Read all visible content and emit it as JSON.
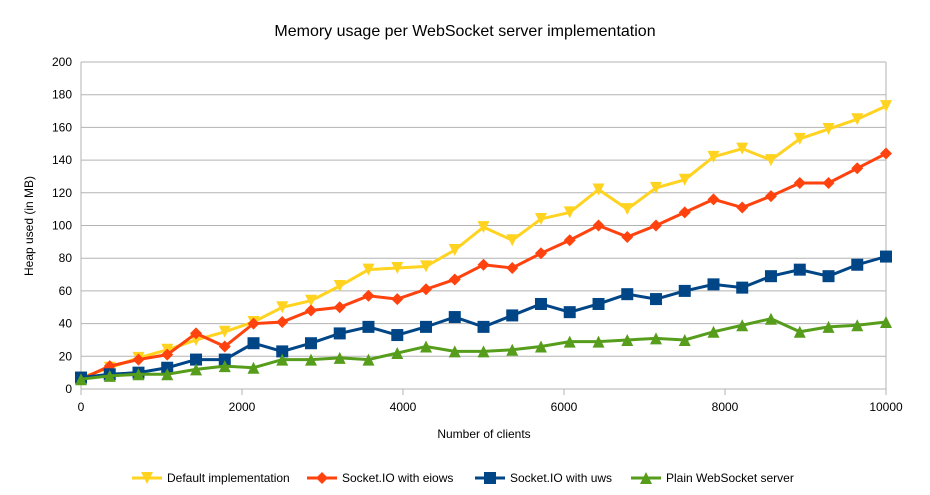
{
  "chart_data": {
    "type": "line",
    "title": "Memory usage per WebSocket server implementation",
    "xlabel": "Number of clients",
    "ylabel": "Heap used (in MB)",
    "xlim": [
      0,
      10000
    ],
    "ylim": [
      0,
      200
    ],
    "xticks": [
      0,
      2000,
      4000,
      6000,
      8000,
      10000
    ],
    "yticks": [
      0,
      20,
      40,
      60,
      80,
      100,
      120,
      140,
      160,
      180,
      200
    ],
    "grid": true,
    "legend": "bottom",
    "x": [
      0,
      357,
      714,
      1071,
      1429,
      1786,
      2143,
      2500,
      2857,
      3214,
      3571,
      3929,
      4286,
      4643,
      5000,
      5357,
      5714,
      6071,
      6429,
      6786,
      7143,
      7500,
      7857,
      8214,
      8571,
      8929,
      9286,
      9643,
      10000
    ],
    "series": [
      {
        "name": "Default implementation",
        "color": "#FFD320",
        "marker": "triangle-down",
        "values": [
          7,
          13,
          19,
          24,
          30,
          35,
          41,
          50,
          54,
          63,
          73,
          74,
          75,
          85,
          99,
          91,
          104,
          108,
          122,
          110,
          123,
          128,
          142,
          147,
          140,
          153,
          159,
          165,
          173
        ]
      },
      {
        "name": "Socket.IO with eiows",
        "color": "#FF420E",
        "marker": "diamond",
        "values": [
          6,
          14,
          18,
          21,
          34,
          26,
          40,
          41,
          48,
          50,
          57,
          55,
          61,
          67,
          76,
          74,
          83,
          91,
          100,
          93,
          100,
          108,
          116,
          111,
          118,
          126,
          126,
          135,
          144
        ]
      },
      {
        "name": "Socket.IO with uws",
        "color": "#004586",
        "marker": "square",
        "values": [
          7,
          9,
          10,
          13,
          18,
          18,
          28,
          23,
          28,
          34,
          38,
          33,
          38,
          44,
          38,
          45,
          52,
          47,
          52,
          58,
          55,
          60,
          64,
          62,
          69,
          73,
          69,
          76,
          81
        ]
      },
      {
        "name": "Plain WebSocket server",
        "color": "#579D1C",
        "marker": "triangle-up",
        "values": [
          6,
          8,
          9,
          9,
          12,
          14,
          13,
          18,
          18,
          19,
          18,
          22,
          26,
          23,
          23,
          24,
          26,
          29,
          29,
          30,
          31,
          30,
          35,
          39,
          43,
          35,
          38,
          39,
          41
        ]
      }
    ]
  }
}
